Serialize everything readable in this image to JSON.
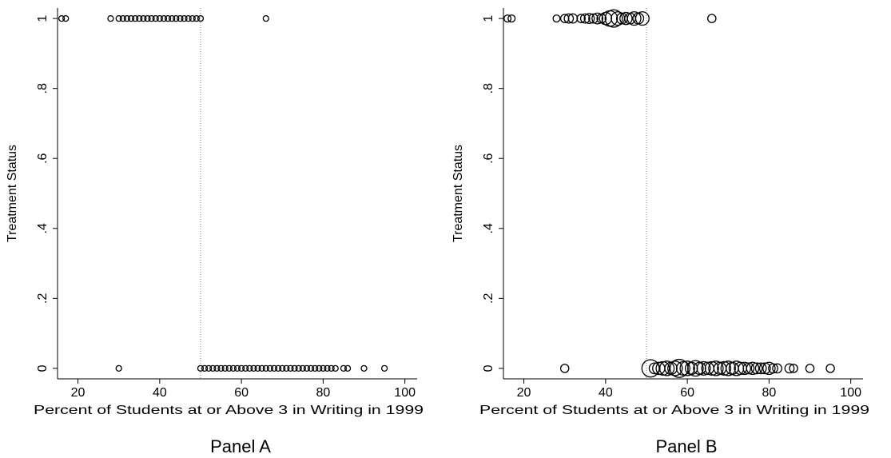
{
  "chart_data": [
    {
      "type": "scatter",
      "panel_label": "Panel A",
      "xlabel": "Percent of Students at or Above 3 in Writing in 1999",
      "ylabel": "Treatment Status",
      "xlim": [
        15,
        103
      ],
      "ylim": [
        -0.03,
        1.03
      ],
      "x_ticks": [
        {
          "v": 20,
          "label": "20"
        },
        {
          "v": 40,
          "label": "40"
        },
        {
          "v": 60,
          "label": "60"
        },
        {
          "v": 80,
          "label": "80"
        },
        {
          "v": 100,
          "label": "100"
        }
      ],
      "y_ticks": [
        {
          "v": 0,
          "label": "0"
        },
        {
          "v": 0.2,
          "label": ".2"
        },
        {
          "v": 0.4,
          "label": ".4"
        },
        {
          "v": 0.6,
          "label": ".6"
        },
        {
          "v": 0.8,
          "label": ".8"
        },
        {
          "v": 1,
          "label": "1"
        }
      ],
      "cutoff_x": 50,
      "weighted": false,
      "points": [
        {
          "x": 16,
          "y": 1
        },
        {
          "x": 17,
          "y": 1
        },
        {
          "x": 28,
          "y": 1
        },
        {
          "x": 30,
          "y": 1
        },
        {
          "x": 31,
          "y": 1
        },
        {
          "x": 32,
          "y": 1
        },
        {
          "x": 33,
          "y": 1
        },
        {
          "x": 34,
          "y": 1
        },
        {
          "x": 35,
          "y": 1
        },
        {
          "x": 36,
          "y": 1
        },
        {
          "x": 37,
          "y": 1
        },
        {
          "x": 38,
          "y": 1
        },
        {
          "x": 39,
          "y": 1
        },
        {
          "x": 40,
          "y": 1
        },
        {
          "x": 41,
          "y": 1
        },
        {
          "x": 42,
          "y": 1
        },
        {
          "x": 43,
          "y": 1
        },
        {
          "x": 44,
          "y": 1
        },
        {
          "x": 45,
          "y": 1
        },
        {
          "x": 46,
          "y": 1
        },
        {
          "x": 47,
          "y": 1
        },
        {
          "x": 48,
          "y": 1
        },
        {
          "x": 49,
          "y": 1
        },
        {
          "x": 50,
          "y": 1
        },
        {
          "x": 66,
          "y": 1
        },
        {
          "x": 30,
          "y": 0
        },
        {
          "x": 50,
          "y": 0
        },
        {
          "x": 51,
          "y": 0
        },
        {
          "x": 52,
          "y": 0
        },
        {
          "x": 53,
          "y": 0
        },
        {
          "x": 54,
          "y": 0
        },
        {
          "x": 55,
          "y": 0
        },
        {
          "x": 56,
          "y": 0
        },
        {
          "x": 57,
          "y": 0
        },
        {
          "x": 58,
          "y": 0
        },
        {
          "x": 59,
          "y": 0
        },
        {
          "x": 60,
          "y": 0
        },
        {
          "x": 61,
          "y": 0
        },
        {
          "x": 62,
          "y": 0
        },
        {
          "x": 63,
          "y": 0
        },
        {
          "x": 64,
          "y": 0
        },
        {
          "x": 65,
          "y": 0
        },
        {
          "x": 66,
          "y": 0
        },
        {
          "x": 67,
          "y": 0
        },
        {
          "x": 68,
          "y": 0
        },
        {
          "x": 69,
          "y": 0
        },
        {
          "x": 70,
          "y": 0
        },
        {
          "x": 71,
          "y": 0
        },
        {
          "x": 72,
          "y": 0
        },
        {
          "x": 73,
          "y": 0
        },
        {
          "x": 74,
          "y": 0
        },
        {
          "x": 75,
          "y": 0
        },
        {
          "x": 76,
          "y": 0
        },
        {
          "x": 77,
          "y": 0
        },
        {
          "x": 78,
          "y": 0
        },
        {
          "x": 79,
          "y": 0
        },
        {
          "x": 80,
          "y": 0
        },
        {
          "x": 81,
          "y": 0
        },
        {
          "x": 82,
          "y": 0
        },
        {
          "x": 83,
          "y": 0
        },
        {
          "x": 85,
          "y": 0
        },
        {
          "x": 86,
          "y": 0
        },
        {
          "x": 90,
          "y": 0
        },
        {
          "x": 95,
          "y": 0
        }
      ]
    },
    {
      "type": "scatter",
      "panel_label": "Panel B",
      "xlabel": "Percent of Students at or Above 3 in Writing in 1999",
      "ylabel": "Treatment Status",
      "xlim": [
        15,
        103
      ],
      "ylim": [
        -0.03,
        1.03
      ],
      "x_ticks": [
        {
          "v": 20,
          "label": "20"
        },
        {
          "v": 40,
          "label": "40"
        },
        {
          "v": 60,
          "label": "60"
        },
        {
          "v": 80,
          "label": "80"
        },
        {
          "v": 100,
          "label": "100"
        }
      ],
      "y_ticks": [
        {
          "v": 0,
          "label": "0"
        },
        {
          "v": 0.2,
          "label": ".2"
        },
        {
          "v": 0.4,
          "label": ".4"
        },
        {
          "v": 0.6,
          "label": ".6"
        },
        {
          "v": 0.8,
          "label": ".8"
        },
        {
          "v": 1,
          "label": "1"
        }
      ],
      "cutoff_x": 50,
      "weighted": true,
      "points": [
        {
          "x": 16,
          "y": 1,
          "w": 1
        },
        {
          "x": 17,
          "y": 1,
          "w": 1
        },
        {
          "x": 28,
          "y": 1,
          "w": 1
        },
        {
          "x": 30,
          "y": 1,
          "w": 1.5
        },
        {
          "x": 31,
          "y": 1,
          "w": 2
        },
        {
          "x": 32,
          "y": 1,
          "w": 2
        },
        {
          "x": 34,
          "y": 1,
          "w": 1.5
        },
        {
          "x": 35,
          "y": 1,
          "w": 2
        },
        {
          "x": 36,
          "y": 1,
          "w": 2.5
        },
        {
          "x": 37,
          "y": 1,
          "w": 2
        },
        {
          "x": 38,
          "y": 1,
          "w": 3
        },
        {
          "x": 39,
          "y": 1,
          "w": 2
        },
        {
          "x": 40,
          "y": 1,
          "w": 4
        },
        {
          "x": 41,
          "y": 1,
          "w": 7
        },
        {
          "x": 42,
          "y": 1,
          "w": 9
        },
        {
          "x": 43,
          "y": 1,
          "w": 5
        },
        {
          "x": 44,
          "y": 1,
          "w": 3
        },
        {
          "x": 45,
          "y": 1,
          "w": 4
        },
        {
          "x": 46,
          "y": 1,
          "w": 3
        },
        {
          "x": 47,
          "y": 1,
          "w": 5
        },
        {
          "x": 48,
          "y": 1,
          "w": 3
        },
        {
          "x": 49,
          "y": 1,
          "w": 5
        },
        {
          "x": 66,
          "y": 1,
          "w": 1.5
        },
        {
          "x": 30,
          "y": 0,
          "w": 1.5
        },
        {
          "x": 51,
          "y": 0,
          "w": 9
        },
        {
          "x": 52,
          "y": 0,
          "w": 3
        },
        {
          "x": 53,
          "y": 0,
          "w": 4
        },
        {
          "x": 54,
          "y": 0,
          "w": 5
        },
        {
          "x": 55,
          "y": 0,
          "w": 6
        },
        {
          "x": 56,
          "y": 0,
          "w": 4
        },
        {
          "x": 57,
          "y": 0,
          "w": 6
        },
        {
          "x": 58,
          "y": 0,
          "w": 10
        },
        {
          "x": 59,
          "y": 0,
          "w": 5
        },
        {
          "x": 60,
          "y": 0,
          "w": 6
        },
        {
          "x": 61,
          "y": 0,
          "w": 4
        },
        {
          "x": 62,
          "y": 0,
          "w": 7
        },
        {
          "x": 63,
          "y": 0,
          "w": 4
        },
        {
          "x": 64,
          "y": 0,
          "w": 5
        },
        {
          "x": 65,
          "y": 0,
          "w": 4
        },
        {
          "x": 66,
          "y": 0,
          "w": 5
        },
        {
          "x": 67,
          "y": 0,
          "w": 6
        },
        {
          "x": 68,
          "y": 0,
          "w": 4
        },
        {
          "x": 69,
          "y": 0,
          "w": 5
        },
        {
          "x": 70,
          "y": 0,
          "w": 6
        },
        {
          "x": 71,
          "y": 0,
          "w": 4
        },
        {
          "x": 72,
          "y": 0,
          "w": 6
        },
        {
          "x": 73,
          "y": 0,
          "w": 4
        },
        {
          "x": 74,
          "y": 0,
          "w": 4
        },
        {
          "x": 75,
          "y": 0,
          "w": 3
        },
        {
          "x": 76,
          "y": 0,
          "w": 4
        },
        {
          "x": 77,
          "y": 0,
          "w": 3
        },
        {
          "x": 78,
          "y": 0,
          "w": 3
        },
        {
          "x": 79,
          "y": 0,
          "w": 3
        },
        {
          "x": 80,
          "y": 0,
          "w": 4
        },
        {
          "x": 81,
          "y": 0,
          "w": 2
        },
        {
          "x": 82,
          "y": 0,
          "w": 2
        },
        {
          "x": 85,
          "y": 0,
          "w": 2
        },
        {
          "x": 86,
          "y": 0,
          "w": 1.5
        },
        {
          "x": 90,
          "y": 0,
          "w": 1.5
        },
        {
          "x": 95,
          "y": 0,
          "w": 1.5
        }
      ]
    }
  ]
}
